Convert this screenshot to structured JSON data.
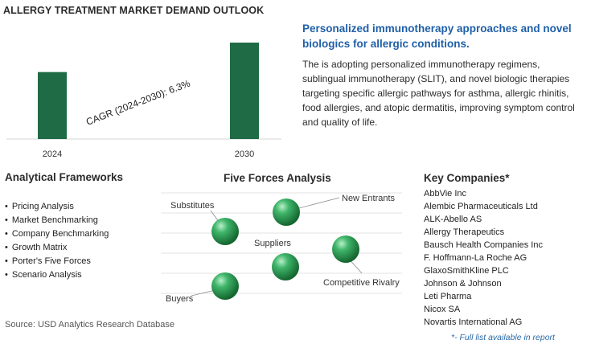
{
  "chart_data": {
    "type": "bar",
    "title": "ALLERGY TREATMENT MARKET DEMAND OUTLOOK",
    "categories": [
      "2024",
      "2030"
    ],
    "values": [
      1.0,
      1.44
    ],
    "annotation": "CAGR (2024-2030):  6.3%",
    "bar_color": "#1f6b45",
    "ylim": [
      0,
      1.5
    ]
  },
  "headline": "Personalized immunotherapy approaches and novel biologics for allergic conditions.",
  "description": "The is adopting personalized immunotherapy regimens, sublingual immunotherapy (SLIT), and novel biologic therapies targeting specific allergic pathways for asthma, allergic rhinitis, food allergies, and atopic dermatitis, improving symptom control and quality of life.",
  "frameworks": {
    "title": "Analytical Frameworks",
    "items": [
      "Pricing Analysis",
      "Market Benchmarking",
      "Company Benchmarking",
      "Growth Matrix",
      "Porter's Five Forces",
      "Scenario Analysis"
    ]
  },
  "five_forces": {
    "title": "Five Forces Analysis",
    "labels": {
      "substitutes": "Substitutes",
      "new_entrants": "New Entrants",
      "suppliers": "Suppliers",
      "competitive_rivalry": "Competitive Rivalry",
      "buyers": "Buyers"
    }
  },
  "companies": {
    "title": "Key Companies*",
    "items": [
      "AbbVie Inc",
      "Alembic Pharmaceuticals Ltd",
      "ALK-Abello AS",
      "Allergy Therapeutics",
      "Bausch Health Companies Inc",
      "F. Hoffmann-La Roche AG",
      "GlaxoSmithKline PLC",
      "Johnson & Johnson",
      "Leti Pharma",
      "Nicox SA",
      "Novartis International AG"
    ],
    "footnote": "*- Full list available in report"
  },
  "source": "Source: USD Analytics Research Database",
  "colors": {
    "accent": "#1f5fa8",
    "bar": "#1f6b45",
    "sphere": "#2e9a57"
  }
}
